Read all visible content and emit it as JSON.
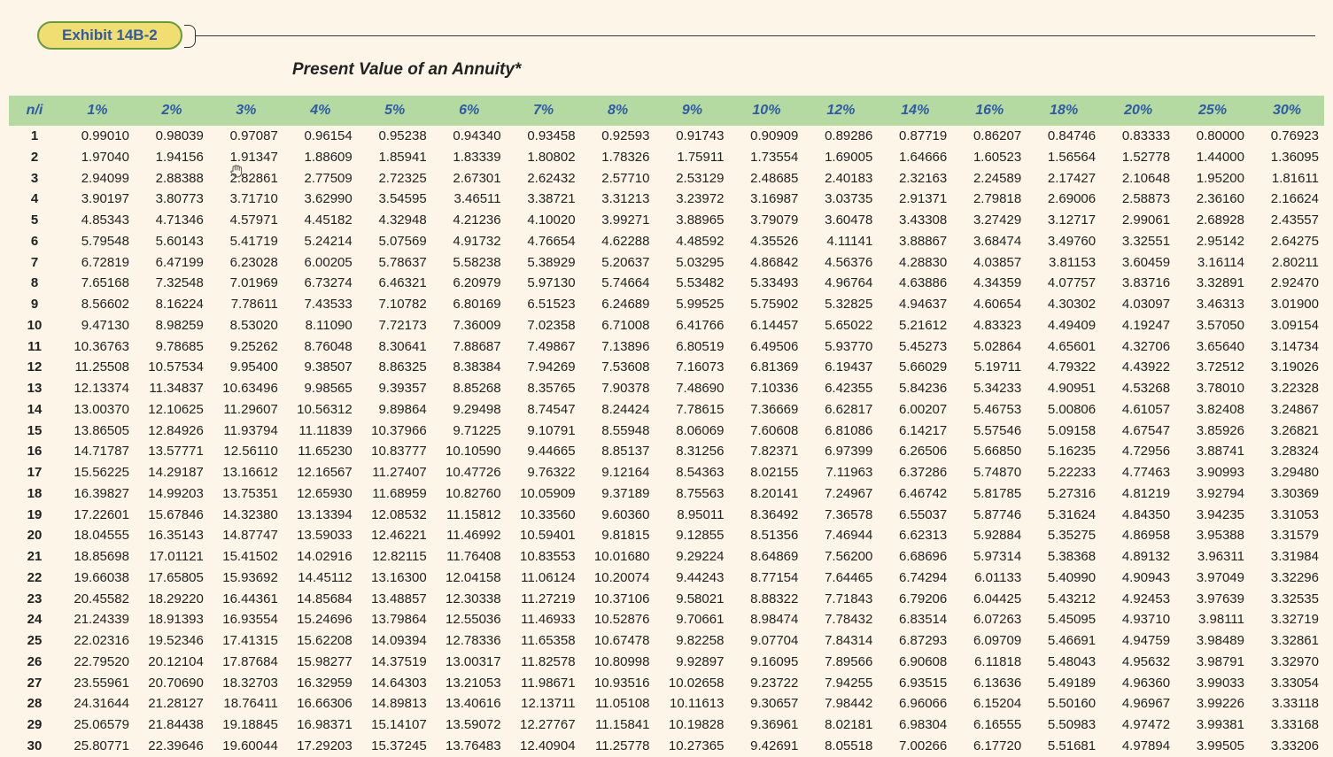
{
  "exhibit": {
    "label": "Exhibit 14B-2",
    "subtitle": "Present Value of an Annuity*"
  },
  "table": {
    "type": "table",
    "corner_label": "n/i",
    "header_bg": "#b4daa1",
    "header_text_color": "#2e5aa8",
    "page_bg": "#fdf5e8",
    "pill_bg": "#f1de73",
    "pill_border": "#689a3e",
    "title_fontsize": 19,
    "header_fontsize": 16,
    "cell_fontsize": 15,
    "columns": [
      "1%",
      "2%",
      "3%",
      "4%",
      "5%",
      "6%",
      "7%",
      "8%",
      "9%",
      "10%",
      "12%",
      "14%",
      "16%",
      "18%",
      "20%",
      "25%",
      "30%"
    ],
    "row_labels": [
      "1",
      "2",
      "3",
      "4",
      "5",
      "6",
      "7",
      "8",
      "9",
      "10",
      "11",
      "12",
      "13",
      "14",
      "15",
      "16",
      "17",
      "18",
      "19",
      "20",
      "21",
      "22",
      "23",
      "24",
      "25",
      "26",
      "27",
      "28",
      "29",
      "30"
    ],
    "rows": [
      [
        "0.99010",
        "0.98039",
        "0.97087",
        "0.96154",
        "0.95238",
        "0.94340",
        "0.93458",
        "0.92593",
        "0.91743",
        "0.90909",
        "0.89286",
        "0.87719",
        "0.86207",
        "0.84746",
        "0.83333",
        "0.80000",
        "0.76923"
      ],
      [
        "1.97040",
        "1.94156",
        "1.91347",
        "1.88609",
        "1.85941",
        "1.83339",
        "1.80802",
        "1.78326",
        "1.75911",
        "1.73554",
        "1.69005",
        "1.64666",
        "1.60523",
        "1.56564",
        "1.52778",
        "1.44000",
        "1.36095"
      ],
      [
        "2.94099",
        "2.88388",
        "2.82861",
        "2.77509",
        "2.72325",
        "2.67301",
        "2.62432",
        "2.57710",
        "2.53129",
        "2.48685",
        "2.40183",
        "2.32163",
        "2.24589",
        "2.17427",
        "2.10648",
        "1.95200",
        "1.81611"
      ],
      [
        "3.90197",
        "3.80773",
        "3.71710",
        "3.62990",
        "3.54595",
        "3.46511",
        "3.38721",
        "3.31213",
        "3.23972",
        "3.16987",
        "3.03735",
        "2.91371",
        "2.79818",
        "2.69006",
        "2.58873",
        "2.36160",
        "2.16624"
      ],
      [
        "4.85343",
        "4.71346",
        "4.57971",
        "4.45182",
        "4.32948",
        "4.21236",
        "4.10020",
        "3.99271",
        "3.88965",
        "3.79079",
        "3.60478",
        "3.43308",
        "3.27429",
        "3.12717",
        "2.99061",
        "2.68928",
        "2.43557"
      ],
      [
        "5.79548",
        "5.60143",
        "5.41719",
        "5.24214",
        "5.07569",
        "4.91732",
        "4.76654",
        "4.62288",
        "4.48592",
        "4.35526",
        "4.11141",
        "3.88867",
        "3.68474",
        "3.49760",
        "3.32551",
        "2.95142",
        "2.64275"
      ],
      [
        "6.72819",
        "6.47199",
        "6.23028",
        "6.00205",
        "5.78637",
        "5.58238",
        "5.38929",
        "5.20637",
        "5.03295",
        "4.86842",
        "4.56376",
        "4.28830",
        "4.03857",
        "3.81153",
        "3.60459",
        "3.16114",
        "2.80211"
      ],
      [
        "7.65168",
        "7.32548",
        "7.01969",
        "6.73274",
        "6.46321",
        "6.20979",
        "5.97130",
        "5.74664",
        "5.53482",
        "5.33493",
        "4.96764",
        "4.63886",
        "4.34359",
        "4.07757",
        "3.83716",
        "3.32891",
        "2.92470"
      ],
      [
        "8.56602",
        "8.16224",
        "7.78611",
        "7.43533",
        "7.10782",
        "6.80169",
        "6.51523",
        "6.24689",
        "5.99525",
        "5.75902",
        "5.32825",
        "4.94637",
        "4.60654",
        "4.30302",
        "4.03097",
        "3.46313",
        "3.01900"
      ],
      [
        "9.47130",
        "8.98259",
        "8.53020",
        "8.11090",
        "7.72173",
        "7.36009",
        "7.02358",
        "6.71008",
        "6.41766",
        "6.14457",
        "5.65022",
        "5.21612",
        "4.83323",
        "4.49409",
        "4.19247",
        "3.57050",
        "3.09154"
      ],
      [
        "10.36763",
        "9.78685",
        "9.25262",
        "8.76048",
        "8.30641",
        "7.88687",
        "7.49867",
        "7.13896",
        "6.80519",
        "6.49506",
        "5.93770",
        "5.45273",
        "5.02864",
        "4.65601",
        "4.32706",
        "3.65640",
        "3.14734"
      ],
      [
        "11.25508",
        "10.57534",
        "9.95400",
        "9.38507",
        "8.86325",
        "8.38384",
        "7.94269",
        "7.53608",
        "7.16073",
        "6.81369",
        "6.19437",
        "5.66029",
        "5.19711",
        "4.79322",
        "4.43922",
        "3.72512",
        "3.19026"
      ],
      [
        "12.13374",
        "11.34837",
        "10.63496",
        "9.98565",
        "9.39357",
        "8.85268",
        "8.35765",
        "7.90378",
        "7.48690",
        "7.10336",
        "6.42355",
        "5.84236",
        "5.34233",
        "4.90951",
        "4.53268",
        "3.78010",
        "3.22328"
      ],
      [
        "13.00370",
        "12.10625",
        "11.29607",
        "10.56312",
        "9.89864",
        "9.29498",
        "8.74547",
        "8.24424",
        "7.78615",
        "7.36669",
        "6.62817",
        "6.00207",
        "5.46753",
        "5.00806",
        "4.61057",
        "3.82408",
        "3.24867"
      ],
      [
        "13.86505",
        "12.84926",
        "11.93794",
        "11.11839",
        "10.37966",
        "9.71225",
        "9.10791",
        "8.55948",
        "8.06069",
        "7.60608",
        "6.81086",
        "6.14217",
        "5.57546",
        "5.09158",
        "4.67547",
        "3.85926",
        "3.26821"
      ],
      [
        "14.71787",
        "13.57771",
        "12.56110",
        "11.65230",
        "10.83777",
        "10.10590",
        "9.44665",
        "8.85137",
        "8.31256",
        "7.82371",
        "6.97399",
        "6.26506",
        "5.66850",
        "5.16235",
        "4.72956",
        "3.88741",
        "3.28324"
      ],
      [
        "15.56225",
        "14.29187",
        "13.16612",
        "12.16567",
        "11.27407",
        "10.47726",
        "9.76322",
        "9.12164",
        "8.54363",
        "8.02155",
        "7.11963",
        "6.37286",
        "5.74870",
        "5.22233",
        "4.77463",
        "3.90993",
        "3.29480"
      ],
      [
        "16.39827",
        "14.99203",
        "13.75351",
        "12.65930",
        "11.68959",
        "10.82760",
        "10.05909",
        "9.37189",
        "8.75563",
        "8.20141",
        "7.24967",
        "6.46742",
        "5.81785",
        "5.27316",
        "4.81219",
        "3.92794",
        "3.30369"
      ],
      [
        "17.22601",
        "15.67846",
        "14.32380",
        "13.13394",
        "12.08532",
        "11.15812",
        "10.33560",
        "9.60360",
        "8.95011",
        "8.36492",
        "7.36578",
        "6.55037",
        "5.87746",
        "5.31624",
        "4.84350",
        "3.94235",
        "3.31053"
      ],
      [
        "18.04555",
        "16.35143",
        "14.87747",
        "13.59033",
        "12.46221",
        "11.46992",
        "10.59401",
        "9.81815",
        "9.12855",
        "8.51356",
        "7.46944",
        "6.62313",
        "5.92884",
        "5.35275",
        "4.86958",
        "3.95388",
        "3.31579"
      ],
      [
        "18.85698",
        "17.01121",
        "15.41502",
        "14.02916",
        "12.82115",
        "11.76408",
        "10.83553",
        "10.01680",
        "9.29224",
        "8.64869",
        "7.56200",
        "6.68696",
        "5.97314",
        "5.38368",
        "4.89132",
        "3.96311",
        "3.31984"
      ],
      [
        "19.66038",
        "17.65805",
        "15.93692",
        "14.45112",
        "13.16300",
        "12.04158",
        "11.06124",
        "10.20074",
        "9.44243",
        "8.77154",
        "7.64465",
        "6.74294",
        "6.01133",
        "5.40990",
        "4.90943",
        "3.97049",
        "3.32296"
      ],
      [
        "20.45582",
        "18.29220",
        "16.44361",
        "14.85684",
        "13.48857",
        "12.30338",
        "11.27219",
        "10.37106",
        "9.58021",
        "8.88322",
        "7.71843",
        "6.79206",
        "6.04425",
        "5.43212",
        "4.92453",
        "3.97639",
        "3.32535"
      ],
      [
        "21.24339",
        "18.91393",
        "16.93554",
        "15.24696",
        "13.79864",
        "12.55036",
        "11.46933",
        "10.52876",
        "9.70661",
        "8.98474",
        "7.78432",
        "6.83514",
        "6.07263",
        "5.45095",
        "4.93710",
        "3.98111",
        "3.32719"
      ],
      [
        "22.02316",
        "19.52346",
        "17.41315",
        "15.62208",
        "14.09394",
        "12.78336",
        "11.65358",
        "10.67478",
        "9.82258",
        "9.07704",
        "7.84314",
        "6.87293",
        "6.09709",
        "5.46691",
        "4.94759",
        "3.98489",
        "3.32861"
      ],
      [
        "22.79520",
        "20.12104",
        "17.87684",
        "15.98277",
        "14.37519",
        "13.00317",
        "11.82578",
        "10.80998",
        "9.92897",
        "9.16095",
        "7.89566",
        "6.90608",
        "6.11818",
        "5.48043",
        "4.95632",
        "3.98791",
        "3.32970"
      ],
      [
        "23.55961",
        "20.70690",
        "18.32703",
        "16.32959",
        "14.64303",
        "13.21053",
        "11.98671",
        "10.93516",
        "10.02658",
        "9.23722",
        "7.94255",
        "6.93515",
        "6.13636",
        "5.49189",
        "4.96360",
        "3.99033",
        "3.33054"
      ],
      [
        "24.31644",
        "21.28127",
        "18.76411",
        "16.66306",
        "14.89813",
        "13.40616",
        "12.13711",
        "11.05108",
        "10.11613",
        "9.30657",
        "7.98442",
        "6.96066",
        "6.15204",
        "5.50160",
        "4.96967",
        "3.99226",
        "3.33118"
      ],
      [
        "25.06579",
        "21.84438",
        "19.18845",
        "16.98371",
        "15.14107",
        "13.59072",
        "12.27767",
        "11.15841",
        "10.19828",
        "9.36961",
        "8.02181",
        "6.98304",
        "6.16555",
        "5.50983",
        "4.97472",
        "3.99381",
        "3.33168"
      ],
      [
        "25.80771",
        "22.39646",
        "19.60044",
        "17.29203",
        "15.37245",
        "13.76483",
        "12.40904",
        "11.25778",
        "10.27365",
        "9.42691",
        "8.05518",
        "7.00266",
        "6.17720",
        "5.51681",
        "4.97894",
        "3.99505",
        "3.33206"
      ]
    ]
  }
}
